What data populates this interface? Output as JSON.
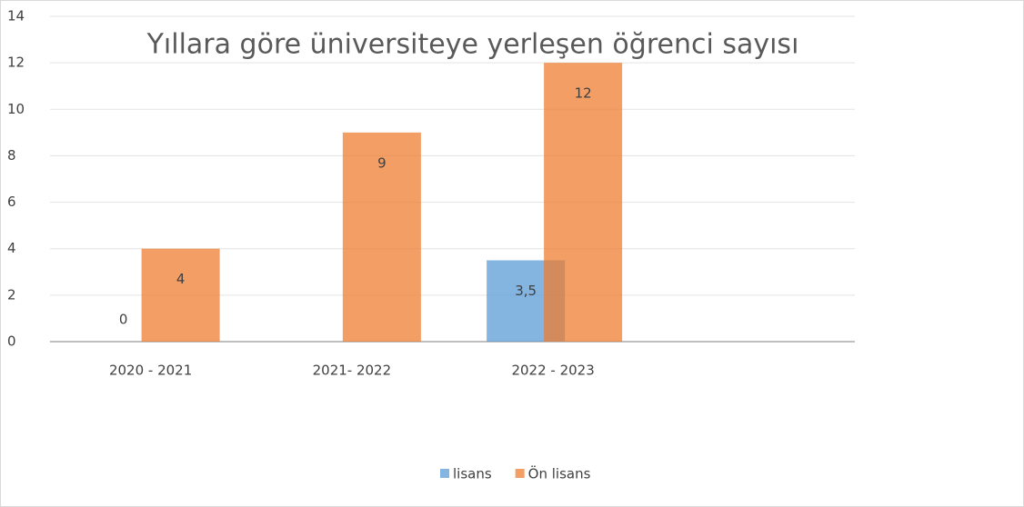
{
  "chart_data": {
    "type": "bar",
    "title": "Yıllara göre üniversiteye yerleşen öğrenci sayısı",
    "categories": [
      "2020 - 2021",
      "2021- 2022",
      "2022 - 2023",
      null
    ],
    "series": [
      {
        "name": "lisans",
        "color": "#5b9bd5",
        "values": [
          0,
          null,
          3.5,
          null
        ],
        "value_labels": [
          "0",
          null,
          "3,5",
          null
        ]
      },
      {
        "name": "Ön lisans",
        "color": "#ed7d31",
        "values": [
          4,
          9,
          12,
          null
        ]
      }
    ],
    "ylim": [
      0,
      14
    ],
    "yticks": [
      0,
      2,
      4,
      6,
      8,
      10,
      12,
      14
    ],
    "grid": true,
    "legend": "bottom"
  }
}
